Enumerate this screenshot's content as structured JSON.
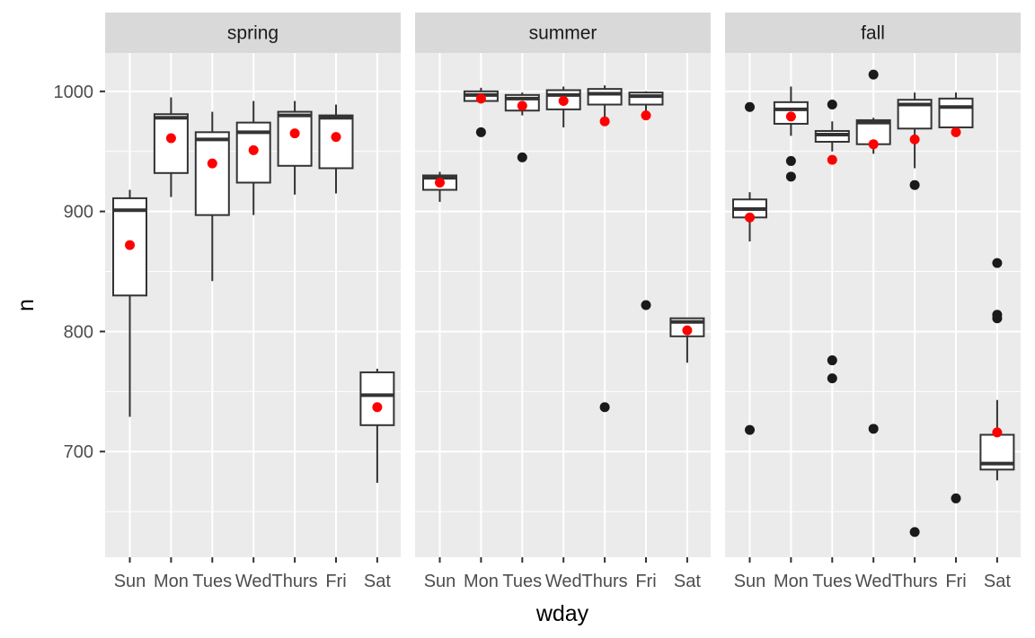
{
  "chart_data": {
    "type": "boxplot",
    "xlabel": "wday",
    "ylabel": "n",
    "ylim": [
      612,
      1032
    ],
    "yticks": [
      700,
      800,
      900,
      1000
    ],
    "categories": [
      "Sun",
      "Mon",
      "Tues",
      "Wed",
      "Thurs",
      "Fri",
      "Sat"
    ],
    "colors": {
      "panel_bg": "#ebebeb",
      "strip_bg": "#d9d9d9",
      "grid": "#ffffff",
      "box_line": "#333333",
      "box_fill": "#ffffff",
      "mean_point": "#ff0000",
      "outlier": "#1a1a1a"
    },
    "facets": [
      {
        "label": "spring",
        "boxes": [
          {
            "wday": "Sun",
            "low": 729,
            "q1": 830,
            "median": 901,
            "q3": 911,
            "high": 918,
            "mean": 872,
            "outliers": []
          },
          {
            "wday": "Mon",
            "low": 912,
            "q1": 932,
            "median": 978,
            "q3": 981,
            "high": 995,
            "mean": 961,
            "outliers": []
          },
          {
            "wday": "Tues",
            "low": 842,
            "q1": 897,
            "median": 960,
            "q3": 966,
            "high": 983,
            "mean": 940,
            "outliers": []
          },
          {
            "wday": "Wed",
            "low": 897,
            "q1": 924,
            "median": 966,
            "q3": 974,
            "high": 992,
            "mean": 951,
            "outliers": []
          },
          {
            "wday": "Thurs",
            "low": 914,
            "q1": 938,
            "median": 980,
            "q3": 983,
            "high": 992,
            "mean": 965,
            "outliers": []
          },
          {
            "wday": "Fri",
            "low": 915,
            "q1": 936,
            "median": 978,
            "q3": 980,
            "high": 989,
            "mean": 962,
            "outliers": []
          },
          {
            "wday": "Sat",
            "low": 674,
            "q1": 722,
            "median": 747,
            "q3": 766,
            "high": 769,
            "mean": 737,
            "outliers": []
          }
        ]
      },
      {
        "label": "summer",
        "boxes": [
          {
            "wday": "Sun",
            "low": 908,
            "q1": 918,
            "median": 928,
            "q3": 930,
            "high": 933,
            "mean": 924,
            "outliers": []
          },
          {
            "wday": "Mon",
            "low": 990,
            "q1": 992,
            "median": 997,
            "q3": 1000,
            "high": 1003,
            "mean": 994,
            "outliers": [
              966
            ]
          },
          {
            "wday": "Tues",
            "low": 980,
            "q1": 984,
            "median": 994,
            "q3": 997,
            "high": 999,
            "mean": 988,
            "outliers": [
              945
            ]
          },
          {
            "wday": "Wed",
            "low": 970,
            "q1": 985,
            "median": 997,
            "q3": 1001,
            "high": 1004,
            "mean": 992,
            "outliers": []
          },
          {
            "wday": "Thurs",
            "low": 975,
            "q1": 989,
            "median": 998,
            "q3": 1002,
            "high": 1005,
            "mean": 975,
            "outliers": [
              737
            ]
          },
          {
            "wday": "Fri",
            "low": 980,
            "q1": 989,
            "median": 996,
            "q3": 999,
            "high": 1000,
            "mean": 980,
            "outliers": [
              822
            ]
          },
          {
            "wday": "Sat",
            "low": 774,
            "q1": 796,
            "median": 808,
            "q3": 811,
            "high": 811,
            "mean": 801,
            "outliers": []
          }
        ]
      },
      {
        "label": "fall",
        "boxes": [
          {
            "wday": "Sun",
            "low": 875,
            "q1": 895,
            "median": 902,
            "q3": 910,
            "high": 916,
            "mean": 895,
            "outliers": [
              987,
              718
            ]
          },
          {
            "wday": "Mon",
            "low": 963,
            "q1": 973,
            "median": 985,
            "q3": 991,
            "high": 1004,
            "mean": 979,
            "outliers": [
              942,
              929
            ]
          },
          {
            "wday": "Tues",
            "low": 950,
            "q1": 958,
            "median": 964,
            "q3": 967,
            "high": 975,
            "mean": 943,
            "outliers": [
              989,
              776,
              761
            ]
          },
          {
            "wday": "Wed",
            "low": 948,
            "q1": 956,
            "median": 974,
            "q3": 976,
            "high": 978,
            "mean": 956,
            "outliers": [
              1014,
              719
            ]
          },
          {
            "wday": "Thurs",
            "low": 936,
            "q1": 969,
            "median": 989,
            "q3": 993,
            "high": 999,
            "mean": 960,
            "outliers": [
              922,
              633
            ]
          },
          {
            "wday": "Fri",
            "low": 966,
            "q1": 970,
            "median": 987,
            "q3": 994,
            "high": 999,
            "mean": 966,
            "outliers": [
              661
            ]
          },
          {
            "wday": "Sat",
            "low": 676,
            "q1": 685,
            "median": 690,
            "q3": 714,
            "high": 743,
            "mean": 716,
            "outliers": [
              857,
              814,
              811
            ]
          }
        ]
      }
    ]
  }
}
